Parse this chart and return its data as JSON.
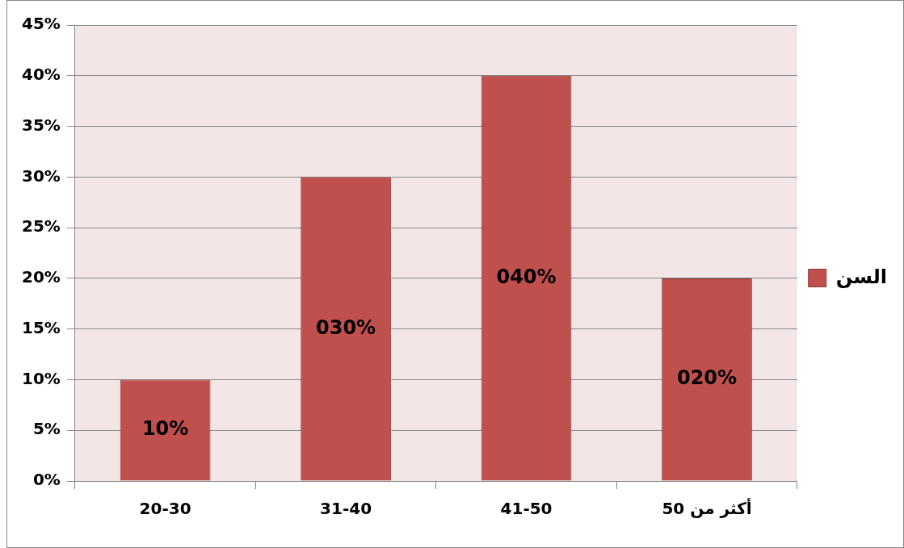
{
  "chart_data": {
    "type": "bar",
    "categories": [
      "20-30",
      "31-40",
      "41-50",
      "أكثر من 50"
    ],
    "series": [
      {
        "name": "السن",
        "color": "#c0504d",
        "values": [
          10,
          30,
          40,
          20
        ]
      }
    ],
    "value_labels": [
      "10%",
      "030%",
      "040%",
      "020%"
    ],
    "ylim": [
      0,
      45
    ],
    "yticks": [
      {
        "value": 0,
        "label": "0%"
      },
      {
        "value": 5,
        "label": "5%"
      },
      {
        "value": 10,
        "label": "10%"
      },
      {
        "value": 15,
        "label": "15%"
      },
      {
        "value": 20,
        "label": "20%"
      },
      {
        "value": 25,
        "label": "25%"
      },
      {
        "value": 30,
        "label": "30%"
      },
      {
        "value": 35,
        "label": "35%"
      },
      {
        "value": 40,
        "label": "40%"
      },
      {
        "value": 45,
        "label": "45%"
      }
    ],
    "grid": "y",
    "legend": "right"
  }
}
